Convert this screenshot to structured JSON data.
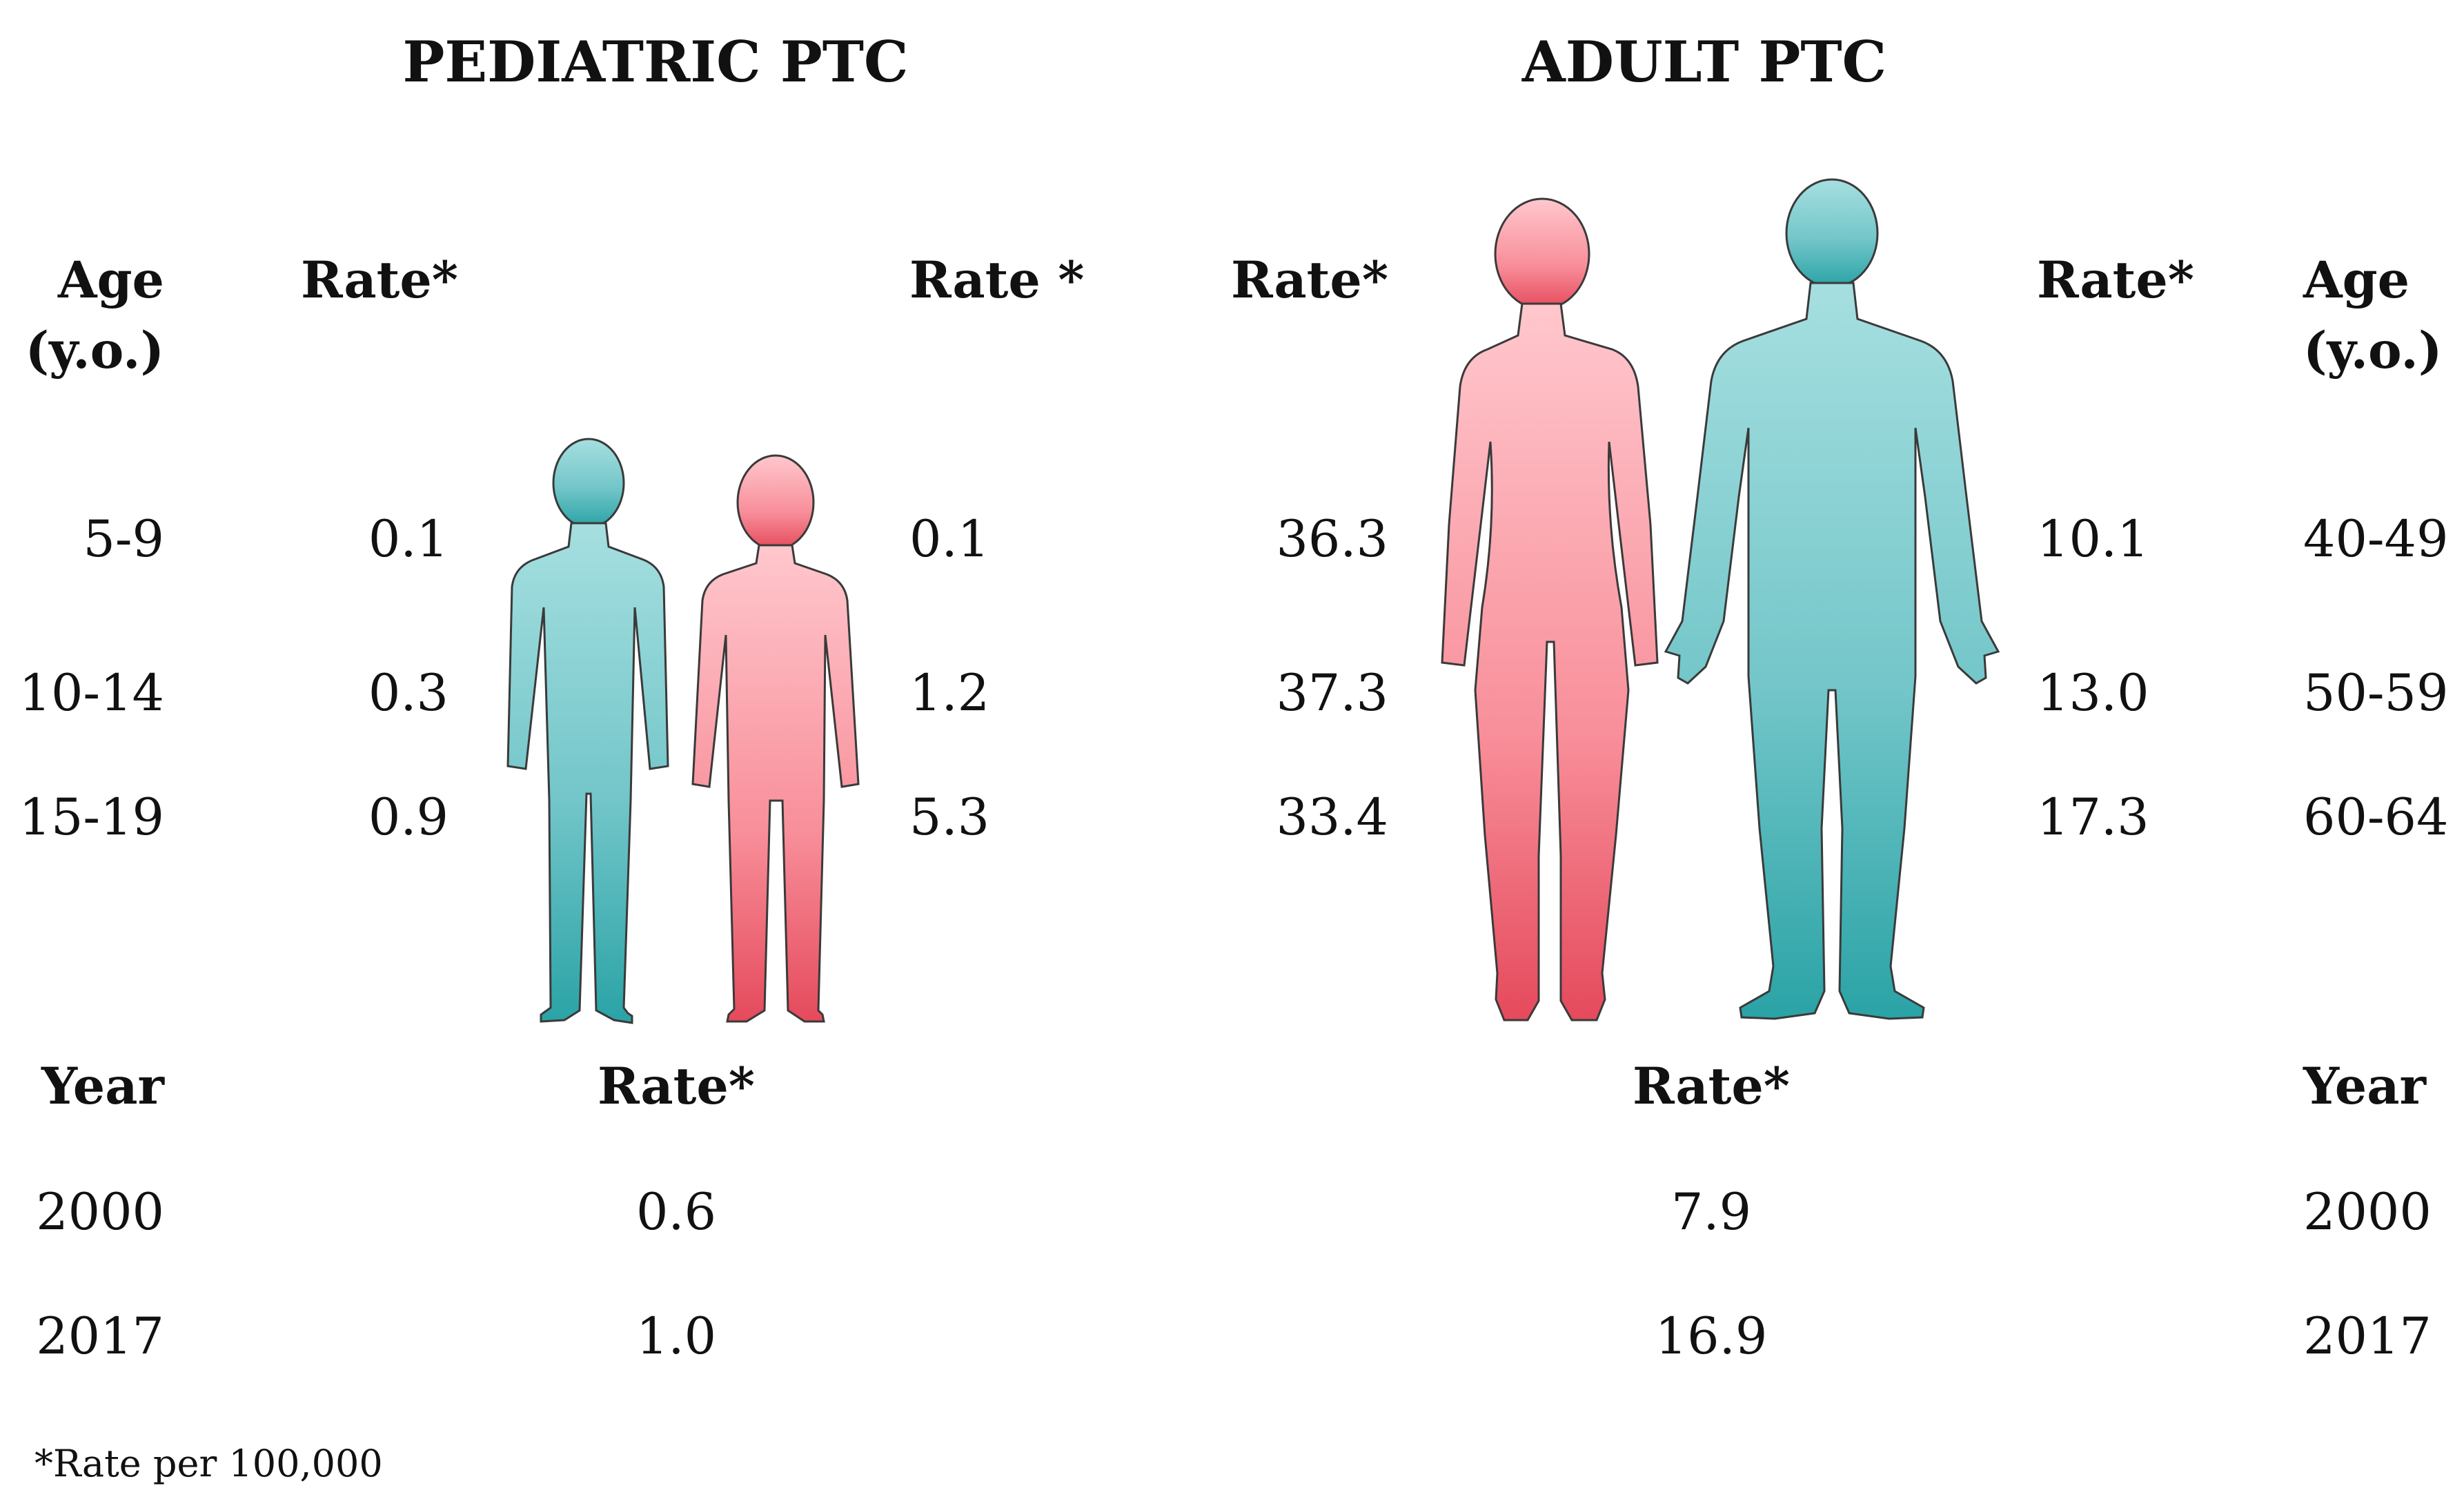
{
  "pediatric": {
    "title": "PEDIATRIC PTC",
    "age_header_line1": "Age",
    "age_header_line2": "(y.o.)",
    "male_rate_header": "Rate*",
    "female_rate_header": "Rate *",
    "rows": [
      {
        "age": "5-9",
        "male_rate": "0.1",
        "female_rate": "0.1"
      },
      {
        "age": "10-14",
        "male_rate": "0.3",
        "female_rate": "1.2"
      },
      {
        "age": "15-19",
        "male_rate": "0.9",
        "female_rate": "5.3"
      }
    ],
    "year_header": "Year",
    "year_rate_header": "Rate*",
    "years": [
      {
        "year": "2000",
        "rate": "0.6"
      },
      {
        "year": "2017",
        "rate": "1.0"
      }
    ]
  },
  "adult": {
    "title": "ADULT PTC",
    "female_rate_header": "Rate*",
    "male_rate_header": "Rate*",
    "age_header_line1": "Age",
    "age_header_line2": "(y.o.)",
    "rows": [
      {
        "age": "40-49",
        "female_rate": "36.3",
        "male_rate": "10.1"
      },
      {
        "age": "50-59",
        "female_rate": "37.3",
        "male_rate": "13.0"
      },
      {
        "age": "60-64",
        "female_rate": "33.4",
        "male_rate": "17.3"
      }
    ],
    "year_header": "Year",
    "year_rate_header": "Rate*",
    "years": [
      {
        "year": "2000",
        "rate": "7.9"
      },
      {
        "year": "2017",
        "rate": "16.9"
      }
    ]
  },
  "footnote": "*Rate per 100,000",
  "colors": {
    "male_top": "#a6dfe0",
    "male_bottom": "#2aa3a6",
    "female_top": "#ffc7cd",
    "female_bottom": "#e54a5c",
    "outline": "#3a3a3a"
  },
  "icons": [
    "boy-silhouette-icon",
    "girl-silhouette-icon",
    "woman-silhouette-icon",
    "man-silhouette-icon"
  ]
}
